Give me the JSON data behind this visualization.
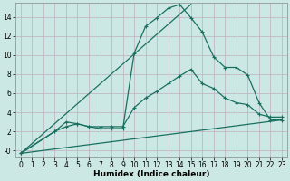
{
  "xlabel": "Humidex (Indice chaleur)",
  "bg_color": "#cce8e4",
  "line_color": "#1a7060",
  "grid_color": "#c0afc0",
  "xlim": [
    -0.5,
    23.5
  ],
  "ylim": [
    -0.7,
    15.5
  ],
  "xticks": [
    0,
    1,
    2,
    3,
    4,
    5,
    6,
    7,
    8,
    9,
    10,
    11,
    12,
    13,
    14,
    15,
    16,
    17,
    18,
    19,
    20,
    21,
    22,
    23
  ],
  "yticks": [
    0,
    2,
    4,
    6,
    8,
    10,
    12,
    14
  ],
  "ylabels": [
    "-0",
    "2",
    "4",
    "6",
    "8",
    "10",
    "12",
    "14"
  ],
  "line1_x": [
    0,
    3,
    4,
    5,
    6,
    7,
    8,
    9,
    10,
    11,
    12,
    13,
    14,
    15,
    16,
    17,
    18,
    19,
    20,
    21,
    22,
    23
  ],
  "line1_y": [
    -0.3,
    2.0,
    3.0,
    2.8,
    2.5,
    2.3,
    2.3,
    2.3,
    10.2,
    13.0,
    13.9,
    14.9,
    15.3,
    13.9,
    12.4,
    9.8,
    8.7,
    8.7,
    7.9,
    5.0,
    3.2,
    3.2
  ],
  "line2_x": [
    0,
    3,
    4,
    5,
    6,
    7,
    8,
    9,
    10,
    11,
    12,
    13,
    14,
    15,
    16,
    17,
    18,
    19,
    20,
    21,
    22,
    23
  ],
  "line2_y": [
    -0.3,
    2.0,
    2.5,
    2.8,
    2.5,
    2.5,
    2.5,
    2.5,
    4.5,
    5.5,
    6.2,
    7.0,
    7.8,
    8.5,
    7.0,
    6.5,
    5.5,
    5.0,
    4.8,
    3.8,
    3.5,
    3.5
  ],
  "line3_x": [
    0,
    23
  ],
  "line3_y": [
    -0.3,
    3.2
  ],
  "line4_x": [
    0,
    15
  ],
  "line4_y": [
    -0.3,
    15.3
  ],
  "marker_style": "+",
  "marker_size": 3,
  "line_width": 0.9,
  "tick_fontsize": 5.5,
  "xlabel_fontsize": 6.5
}
